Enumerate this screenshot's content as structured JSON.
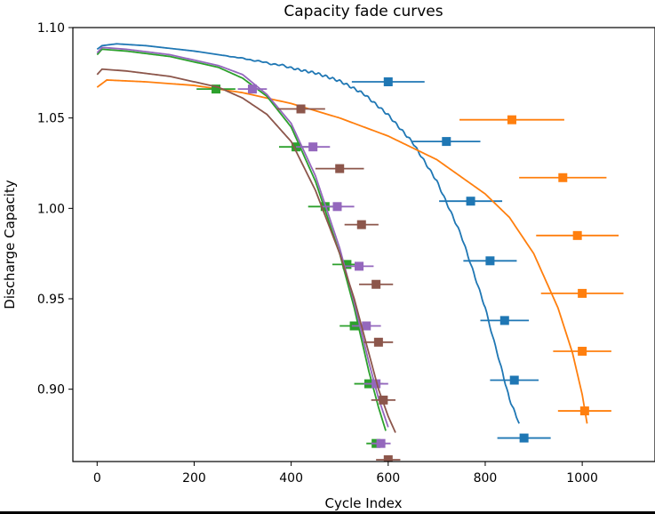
{
  "chart_data": {
    "type": "line",
    "title": "Capacity fade curves",
    "xlabel": "Cycle Index",
    "ylabel": "Discharge Capacity",
    "xlim": [
      -50,
      1150
    ],
    "ylim": [
      0.86,
      1.1
    ],
    "xticks": [
      0,
      200,
      400,
      600,
      800,
      1000
    ],
    "yticks": [
      0.9,
      0.95,
      1.0,
      1.05,
      1.1
    ],
    "ytick_labels": [
      "0.90",
      "0.95",
      "1.00",
      "1.05",
      "1.10"
    ],
    "grid": false,
    "series": [
      {
        "color": "#1f77b4",
        "noisy": true,
        "line": [
          [
            0,
            1.088
          ],
          [
            10,
            1.09
          ],
          [
            40,
            1.091
          ],
          [
            100,
            1.09
          ],
          [
            200,
            1.087
          ],
          [
            300,
            1.083
          ],
          [
            400,
            1.078
          ],
          [
            450,
            1.075
          ],
          [
            500,
            1.07
          ],
          [
            550,
            1.063
          ],
          [
            600,
            1.052
          ],
          [
            650,
            1.037
          ],
          [
            700,
            1.015
          ],
          [
            750,
            0.985
          ],
          [
            800,
            0.945
          ],
          [
            830,
            0.915
          ],
          [
            850,
            0.895
          ],
          [
            870,
            0.881
          ]
        ],
        "markers": [
          [
            600,
            1.07
          ],
          [
            720,
            1.037
          ],
          [
            770,
            1.004
          ],
          [
            810,
            0.971
          ],
          [
            840,
            0.938
          ],
          [
            860,
            0.905
          ],
          [
            880,
            0.873
          ]
        ],
        "xerr": [
          75,
          70,
          65,
          55,
          50,
          50,
          55
        ]
      },
      {
        "color": "#ff7f0e",
        "line": [
          [
            0,
            1.067
          ],
          [
            20,
            1.071
          ],
          [
            100,
            1.07
          ],
          [
            200,
            1.068
          ],
          [
            300,
            1.064
          ],
          [
            400,
            1.058
          ],
          [
            500,
            1.05
          ],
          [
            600,
            1.04
          ],
          [
            700,
            1.027
          ],
          [
            800,
            1.008
          ],
          [
            850,
            0.995
          ],
          [
            900,
            0.975
          ],
          [
            950,
            0.945
          ],
          [
            980,
            0.92
          ],
          [
            1000,
            0.897
          ],
          [
            1010,
            0.881
          ]
        ],
        "markers": [
          [
            855,
            1.049
          ],
          [
            960,
            1.017
          ],
          [
            990,
            0.985
          ],
          [
            1000,
            0.953
          ],
          [
            1000,
            0.921
          ],
          [
            1005,
            0.888
          ]
        ],
        "xerr": [
          108,
          90,
          85,
          85,
          60,
          55
        ]
      },
      {
        "color": "#2ca02c",
        "line": [
          [
            0,
            1.085
          ],
          [
            10,
            1.088
          ],
          [
            60,
            1.087
          ],
          [
            150,
            1.084
          ],
          [
            250,
            1.078
          ],
          [
            300,
            1.072
          ],
          [
            350,
            1.062
          ],
          [
            400,
            1.045
          ],
          [
            450,
            1.015
          ],
          [
            500,
            0.975
          ],
          [
            530,
            0.945
          ],
          [
            560,
            0.91
          ],
          [
            580,
            0.89
          ],
          [
            595,
            0.877
          ]
        ],
        "markers": [
          [
            245,
            1.066
          ],
          [
            410,
            1.034
          ],
          [
            470,
            1.001
          ],
          [
            515,
            0.969
          ],
          [
            530,
            0.935
          ],
          [
            560,
            0.903
          ],
          [
            575,
            0.87
          ]
        ],
        "xerr": [
          40,
          35,
          35,
          30,
          30,
          30,
          20
        ]
      },
      {
        "color": "#9467bd",
        "line": [
          [
            0,
            1.086
          ],
          [
            10,
            1.089
          ],
          [
            60,
            1.088
          ],
          [
            150,
            1.085
          ],
          [
            250,
            1.079
          ],
          [
            300,
            1.074
          ],
          [
            350,
            1.063
          ],
          [
            400,
            1.047
          ],
          [
            450,
            1.018
          ],
          [
            500,
            0.978
          ],
          [
            530,
            0.948
          ],
          [
            560,
            0.915
          ],
          [
            580,
            0.895
          ],
          [
            600,
            0.879
          ]
        ],
        "markers": [
          [
            320,
            1.066
          ],
          [
            445,
            1.034
          ],
          [
            495,
            1.001
          ],
          [
            540,
            0.968
          ],
          [
            555,
            0.935
          ],
          [
            575,
            0.903
          ],
          [
            585,
            0.87
          ]
        ],
        "xerr": [
          30,
          35,
          35,
          30,
          30,
          25,
          20
        ]
      },
      {
        "color": "#8c564b",
        "line": [
          [
            0,
            1.074
          ],
          [
            10,
            1.077
          ],
          [
            60,
            1.076
          ],
          [
            150,
            1.073
          ],
          [
            250,
            1.067
          ],
          [
            300,
            1.061
          ],
          [
            350,
            1.052
          ],
          [
            400,
            1.037
          ],
          [
            450,
            1.01
          ],
          [
            500,
            0.975
          ],
          [
            530,
            0.95
          ],
          [
            560,
            0.92
          ],
          [
            580,
            0.9
          ],
          [
            600,
            0.885
          ],
          [
            615,
            0.876
          ]
        ],
        "markers": [
          [
            420,
            1.055
          ],
          [
            500,
            1.022
          ],
          [
            545,
            0.991
          ],
          [
            575,
            0.958
          ],
          [
            580,
            0.926
          ],
          [
            590,
            0.894
          ],
          [
            600,
            0.861
          ]
        ],
        "xerr": [
          50,
          50,
          35,
          35,
          30,
          25,
          25
        ]
      }
    ]
  }
}
